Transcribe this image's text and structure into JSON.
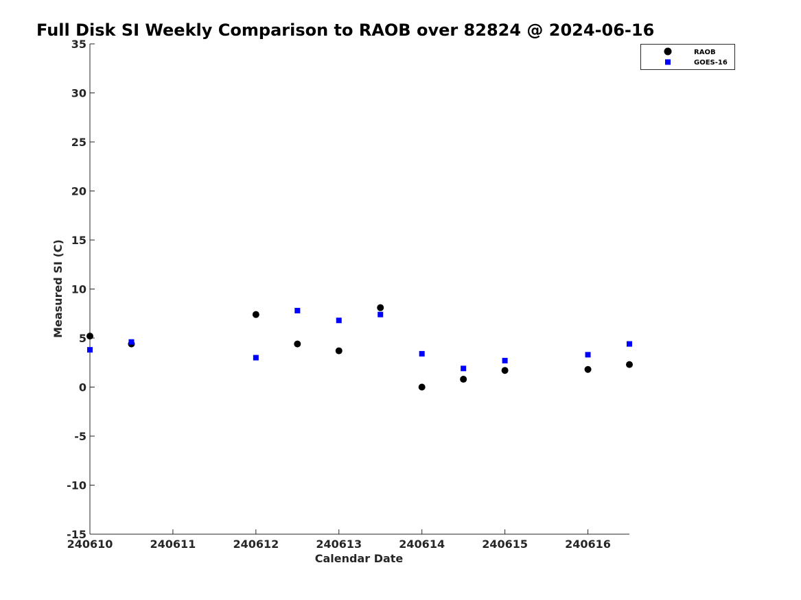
{
  "chart_data": {
    "type": "scatter",
    "title": "Full Disk SI Weekly Comparison to RAOB over 82824 @ 2024-06-16",
    "xlabel": "Calendar Date",
    "ylabel": "Measured SI (C)",
    "xlim": [
      240610,
      240616.5
    ],
    "ylim": [
      -15,
      35
    ],
    "x_tick_values": [
      240610,
      240611,
      240612,
      240613,
      240614,
      240615,
      240616
    ],
    "x_tick_labels": [
      "240610",
      "240611",
      "240612",
      "240613",
      "240614",
      "240615",
      "240616"
    ],
    "y_tick_values": [
      -15,
      -10,
      -5,
      0,
      5,
      10,
      15,
      20,
      25,
      30,
      35
    ],
    "y_tick_labels": [
      "-15",
      "-10",
      "-5",
      "0",
      "5",
      "10",
      "15",
      "20",
      "25",
      "30",
      "35"
    ],
    "grid": false,
    "legend_position": "top-right",
    "series": [
      {
        "name": "RAOB",
        "marker": "circle",
        "color": "#000000",
        "points": [
          [
            240610,
            5.2
          ],
          [
            240610.5,
            4.4
          ],
          [
            240612,
            7.4
          ],
          [
            240612.5,
            4.4
          ],
          [
            240613,
            3.7
          ],
          [
            240613.5,
            8.1
          ],
          [
            240614,
            0.0
          ],
          [
            240614.5,
            0.8
          ],
          [
            240615,
            1.7
          ],
          [
            240616,
            1.8
          ],
          [
            240616.5,
            2.3
          ]
        ]
      },
      {
        "name": "GOES-16",
        "marker": "square",
        "color": "#0000ff",
        "points": [
          [
            240610,
            3.8
          ],
          [
            240610.5,
            4.6
          ],
          [
            240612,
            3.0
          ],
          [
            240612.5,
            7.8
          ],
          [
            240613,
            6.8
          ],
          [
            240613.5,
            7.4
          ],
          [
            240614,
            3.4
          ],
          [
            240614.5,
            1.9
          ],
          [
            240615,
            2.7
          ],
          [
            240616,
            3.3
          ],
          [
            240616.5,
            4.4
          ]
        ]
      }
    ]
  }
}
